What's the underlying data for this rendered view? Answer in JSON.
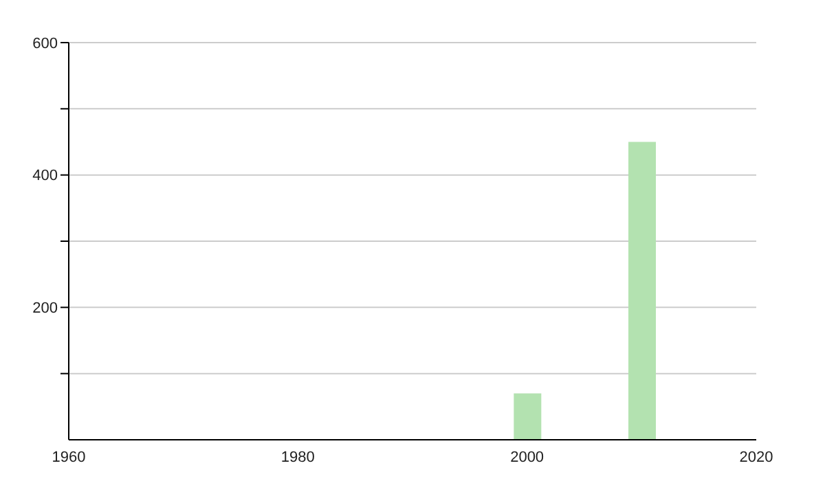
{
  "chart_data": {
    "type": "bar",
    "x": [
      2000,
      2010
    ],
    "values": [
      70,
      450
    ],
    "color": "#b3e2b0",
    "xlim": [
      1960,
      2020
    ],
    "xticks": [
      1960,
      1980,
      2000,
      2020
    ],
    "ylim": [
      0,
      600
    ],
    "yticks": [
      {
        "value": 100,
        "label": null
      },
      200,
      {
        "value": 300,
        "label": null
      },
      400,
      {
        "value": 500,
        "label": null
      },
      600
    ],
    "grid": "y"
  }
}
